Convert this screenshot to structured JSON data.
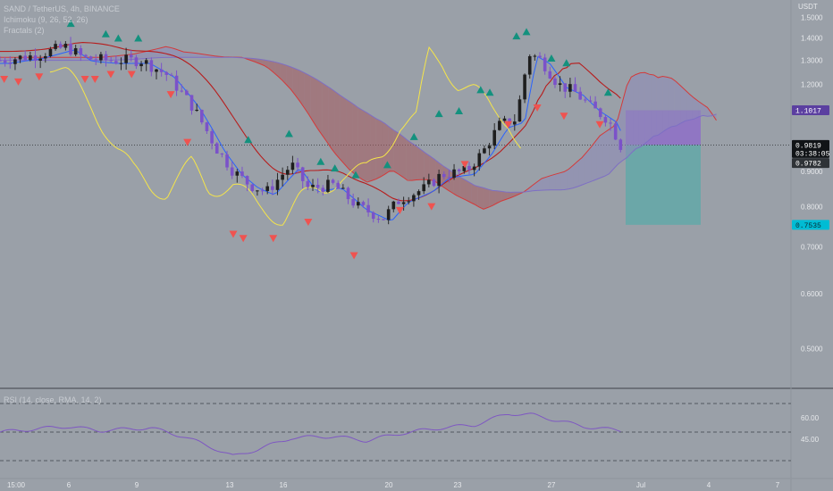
{
  "legend": {
    "symbol": "SAND / TetherUS, 4h, BINANCE",
    "ichimoku": "Ichimoku (9, 26, 52, 26)",
    "fractals": "Fractals (2)",
    "rsi": "RSI (14, close, RMA, 14, 2)"
  },
  "price_scale": {
    "currency": "USDT",
    "ticks": [
      "1.5000",
      "1.4000",
      "1.3000",
      "1.2000",
      "1.1000",
      "0.9000",
      "0.8000",
      "0.7000",
      "0.6000",
      "0.5000"
    ]
  },
  "rsi_scale": {
    "ticks": [
      "60.00",
      "45.00"
    ]
  },
  "x_ticks": [
    "15:00",
    "6",
    "9",
    "13",
    "16",
    "20",
    "23",
    "27",
    "Jul",
    "4",
    "7"
  ],
  "tags": {
    "target": "1.1017",
    "last_price": "0.9819",
    "countdown": "03:38:05",
    "prev_close": "0.9782",
    "stop": "0.7535"
  },
  "colors": {
    "background": "#9aa0a8",
    "bull": "#ffffff",
    "bear": "#7b52c9",
    "conversion": "#2962ff",
    "base": "#b71c1c",
    "lagging": "#f5e54a",
    "cloud_bear": "#a5595d",
    "cloud_bull": "#8e8ab8",
    "fractal_up": "#14917e",
    "fractal_down": "#ef5350",
    "rsi": "#7e57c2",
    "target_zone": "#8e6ec8",
    "stop_zone": "#5fa9a7"
  },
  "chart_data": {
    "type": "candlestick",
    "symbol": "SAND/USDT",
    "interval": "4h",
    "ylim": [
      0.45,
      1.56
    ],
    "y_scale": "log",
    "price_anchors": [
      {
        "x": 0.0,
        "v": 1.3
      },
      {
        "x": 0.04,
        "v": 1.32
      },
      {
        "x": 0.08,
        "v": 1.36
      },
      {
        "x": 0.1,
        "v": 1.31
      },
      {
        "x": 0.13,
        "v": 1.3
      },
      {
        "x": 0.17,
        "v": 1.3
      },
      {
        "x": 0.2,
        "v": 1.24
      },
      {
        "x": 0.23,
        "v": 1.12
      },
      {
        "x": 0.26,
        "v": 0.97
      },
      {
        "x": 0.28,
        "v": 0.9
      },
      {
        "x": 0.3,
        "v": 0.86
      },
      {
        "x": 0.32,
        "v": 0.84
      },
      {
        "x": 0.35,
        "v": 0.92
      },
      {
        "x": 0.37,
        "v": 0.85
      },
      {
        "x": 0.4,
        "v": 0.86
      },
      {
        "x": 0.43,
        "v": 0.8
      },
      {
        "x": 0.46,
        "v": 0.77
      },
      {
        "x": 0.48,
        "v": 0.82
      },
      {
        "x": 0.51,
        "v": 0.85
      },
      {
        "x": 0.53,
        "v": 0.89
      },
      {
        "x": 0.56,
        "v": 0.9
      },
      {
        "x": 0.58,
        "v": 0.96
      },
      {
        "x": 0.6,
        "v": 1.05
      },
      {
        "x": 0.62,
        "v": 1.07
      },
      {
        "x": 0.635,
        "v": 1.33
      },
      {
        "x": 0.65,
        "v": 1.3
      },
      {
        "x": 0.67,
        "v": 1.2
      },
      {
        "x": 0.69,
        "v": 1.17
      },
      {
        "x": 0.71,
        "v": 1.11
      },
      {
        "x": 0.73,
        "v": 1.07
      },
      {
        "x": 0.745,
        "v": 0.98
      }
    ],
    "fractal_up_markers": [
      {
        "x": 0.085,
        "v": 1.47
      },
      {
        "x": 0.127,
        "v": 1.42
      },
      {
        "x": 0.142,
        "v": 1.4
      },
      {
        "x": 0.166,
        "v": 1.4
      },
      {
        "x": 0.298,
        "v": 1.0
      },
      {
        "x": 0.347,
        "v": 1.02
      },
      {
        "x": 0.385,
        "v": 0.93
      },
      {
        "x": 0.402,
        "v": 0.91
      },
      {
        "x": 0.427,
        "v": 0.89
      },
      {
        "x": 0.465,
        "v": 0.92
      },
      {
        "x": 0.497,
        "v": 1.01
      },
      {
        "x": 0.527,
        "v": 1.09
      },
      {
        "x": 0.551,
        "v": 1.1
      },
      {
        "x": 0.577,
        "v": 1.18
      },
      {
        "x": 0.588,
        "v": 1.17
      },
      {
        "x": 0.62,
        "v": 1.41
      },
      {
        "x": 0.632,
        "v": 1.43
      },
      {
        "x": 0.662,
        "v": 1.31
      },
      {
        "x": 0.68,
        "v": 1.29
      },
      {
        "x": 0.73,
        "v": 1.17
      }
    ],
    "fractal_down_markers": [
      {
        "x": 0.005,
        "v": 1.22
      },
      {
        "x": 0.022,
        "v": 1.21
      },
      {
        "x": 0.047,
        "v": 1.23
      },
      {
        "x": 0.102,
        "v": 1.22
      },
      {
        "x": 0.114,
        "v": 1.22
      },
      {
        "x": 0.133,
        "v": 1.24
      },
      {
        "x": 0.158,
        "v": 1.24
      },
      {
        "x": 0.205,
        "v": 1.16
      },
      {
        "x": 0.225,
        "v": 0.99
      },
      {
        "x": 0.28,
        "v": 0.73
      },
      {
        "x": 0.292,
        "v": 0.72
      },
      {
        "x": 0.328,
        "v": 0.72
      },
      {
        "x": 0.37,
        "v": 0.76
      },
      {
        "x": 0.425,
        "v": 0.68
      },
      {
        "x": 0.48,
        "v": 0.79
      },
      {
        "x": 0.518,
        "v": 0.8
      },
      {
        "x": 0.558,
        "v": 0.92
      },
      {
        "x": 0.61,
        "v": 1.05
      },
      {
        "x": 0.645,
        "v": 1.11
      },
      {
        "x": 0.677,
        "v": 1.08
      },
      {
        "x": 0.72,
        "v": 1.05
      }
    ],
    "position": {
      "entry": 0.9819,
      "target": 1.1017,
      "stop": 0.7535
    },
    "rsi": {
      "levels": [
        70,
        50,
        30
      ],
      "ylim": [
        25,
        75
      ],
      "anchors": [
        {
          "x": 0.0,
          "v": 50
        },
        {
          "x": 0.08,
          "v": 54
        },
        {
          "x": 0.12,
          "v": 51
        },
        {
          "x": 0.18,
          "v": 53
        },
        {
          "x": 0.22,
          "v": 47
        },
        {
          "x": 0.26,
          "v": 38
        },
        {
          "x": 0.28,
          "v": 33
        },
        {
          "x": 0.31,
          "v": 38
        },
        {
          "x": 0.35,
          "v": 46
        },
        {
          "x": 0.4,
          "v": 47
        },
        {
          "x": 0.44,
          "v": 44
        },
        {
          "x": 0.48,
          "v": 49
        },
        {
          "x": 0.53,
          "v": 53
        },
        {
          "x": 0.57,
          "v": 55
        },
        {
          "x": 0.61,
          "v": 63
        },
        {
          "x": 0.64,
          "v": 62
        },
        {
          "x": 0.67,
          "v": 58
        },
        {
          "x": 0.7,
          "v": 54
        },
        {
          "x": 0.745,
          "v": 51
        }
      ]
    }
  }
}
